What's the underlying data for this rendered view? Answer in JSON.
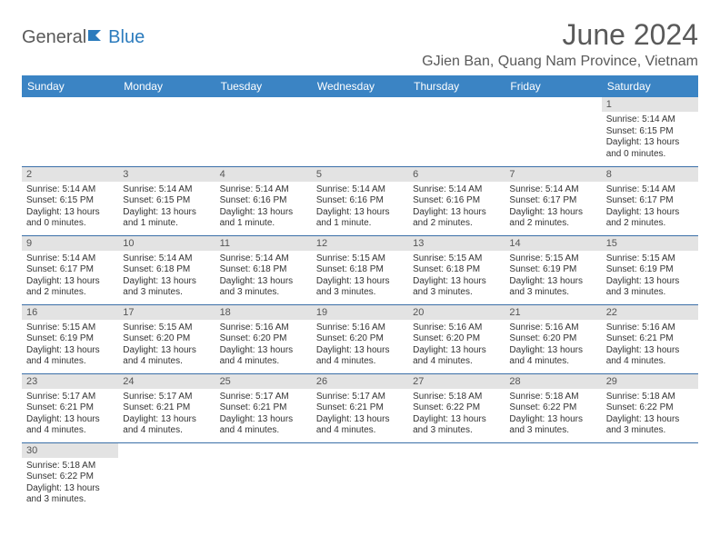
{
  "logo": {
    "text_general": "General",
    "text_blue": "Blue"
  },
  "title": "June 2024",
  "location": "GJien Ban, Quang Nam Province, Vietnam",
  "day_headers": [
    "Sunday",
    "Monday",
    "Tuesday",
    "Wednesday",
    "Thursday",
    "Friday",
    "Saturday"
  ],
  "colors": {
    "header_bg": "#3b84c4",
    "header_text": "#ffffff",
    "daynum_bg": "#e3e3e3",
    "row_border": "#3b6fa8",
    "title_color": "#5a5a5a"
  },
  "weeks": [
    [
      null,
      null,
      null,
      null,
      null,
      null,
      {
        "n": "1",
        "sunrise": "5:14 AM",
        "sunset": "6:15 PM",
        "daylight": "13 hours and 0 minutes."
      }
    ],
    [
      {
        "n": "2",
        "sunrise": "5:14 AM",
        "sunset": "6:15 PM",
        "daylight": "13 hours and 0 minutes."
      },
      {
        "n": "3",
        "sunrise": "5:14 AM",
        "sunset": "6:15 PM",
        "daylight": "13 hours and 1 minute."
      },
      {
        "n": "4",
        "sunrise": "5:14 AM",
        "sunset": "6:16 PM",
        "daylight": "13 hours and 1 minute."
      },
      {
        "n": "5",
        "sunrise": "5:14 AM",
        "sunset": "6:16 PM",
        "daylight": "13 hours and 1 minute."
      },
      {
        "n": "6",
        "sunrise": "5:14 AM",
        "sunset": "6:16 PM",
        "daylight": "13 hours and 2 minutes."
      },
      {
        "n": "7",
        "sunrise": "5:14 AM",
        "sunset": "6:17 PM",
        "daylight": "13 hours and 2 minutes."
      },
      {
        "n": "8",
        "sunrise": "5:14 AM",
        "sunset": "6:17 PM",
        "daylight": "13 hours and 2 minutes."
      }
    ],
    [
      {
        "n": "9",
        "sunrise": "5:14 AM",
        "sunset": "6:17 PM",
        "daylight": "13 hours and 2 minutes."
      },
      {
        "n": "10",
        "sunrise": "5:14 AM",
        "sunset": "6:18 PM",
        "daylight": "13 hours and 3 minutes."
      },
      {
        "n": "11",
        "sunrise": "5:14 AM",
        "sunset": "6:18 PM",
        "daylight": "13 hours and 3 minutes."
      },
      {
        "n": "12",
        "sunrise": "5:15 AM",
        "sunset": "6:18 PM",
        "daylight": "13 hours and 3 minutes."
      },
      {
        "n": "13",
        "sunrise": "5:15 AM",
        "sunset": "6:18 PM",
        "daylight": "13 hours and 3 minutes."
      },
      {
        "n": "14",
        "sunrise": "5:15 AM",
        "sunset": "6:19 PM",
        "daylight": "13 hours and 3 minutes."
      },
      {
        "n": "15",
        "sunrise": "5:15 AM",
        "sunset": "6:19 PM",
        "daylight": "13 hours and 3 minutes."
      }
    ],
    [
      {
        "n": "16",
        "sunrise": "5:15 AM",
        "sunset": "6:19 PM",
        "daylight": "13 hours and 4 minutes."
      },
      {
        "n": "17",
        "sunrise": "5:15 AM",
        "sunset": "6:20 PM",
        "daylight": "13 hours and 4 minutes."
      },
      {
        "n": "18",
        "sunrise": "5:16 AM",
        "sunset": "6:20 PM",
        "daylight": "13 hours and 4 minutes."
      },
      {
        "n": "19",
        "sunrise": "5:16 AM",
        "sunset": "6:20 PM",
        "daylight": "13 hours and 4 minutes."
      },
      {
        "n": "20",
        "sunrise": "5:16 AM",
        "sunset": "6:20 PM",
        "daylight": "13 hours and 4 minutes."
      },
      {
        "n": "21",
        "sunrise": "5:16 AM",
        "sunset": "6:20 PM",
        "daylight": "13 hours and 4 minutes."
      },
      {
        "n": "22",
        "sunrise": "5:16 AM",
        "sunset": "6:21 PM",
        "daylight": "13 hours and 4 minutes."
      }
    ],
    [
      {
        "n": "23",
        "sunrise": "5:17 AM",
        "sunset": "6:21 PM",
        "daylight": "13 hours and 4 minutes."
      },
      {
        "n": "24",
        "sunrise": "5:17 AM",
        "sunset": "6:21 PM",
        "daylight": "13 hours and 4 minutes."
      },
      {
        "n": "25",
        "sunrise": "5:17 AM",
        "sunset": "6:21 PM",
        "daylight": "13 hours and 4 minutes."
      },
      {
        "n": "26",
        "sunrise": "5:17 AM",
        "sunset": "6:21 PM",
        "daylight": "13 hours and 4 minutes."
      },
      {
        "n": "27",
        "sunrise": "5:18 AM",
        "sunset": "6:22 PM",
        "daylight": "13 hours and 3 minutes."
      },
      {
        "n": "28",
        "sunrise": "5:18 AM",
        "sunset": "6:22 PM",
        "daylight": "13 hours and 3 minutes."
      },
      {
        "n": "29",
        "sunrise": "5:18 AM",
        "sunset": "6:22 PM",
        "daylight": "13 hours and 3 minutes."
      }
    ],
    [
      {
        "n": "30",
        "sunrise": "5:18 AM",
        "sunset": "6:22 PM",
        "daylight": "13 hours and 3 minutes."
      },
      null,
      null,
      null,
      null,
      null,
      null
    ]
  ],
  "labels": {
    "sunrise": "Sunrise: ",
    "sunset": "Sunset: ",
    "daylight": "Daylight: "
  }
}
